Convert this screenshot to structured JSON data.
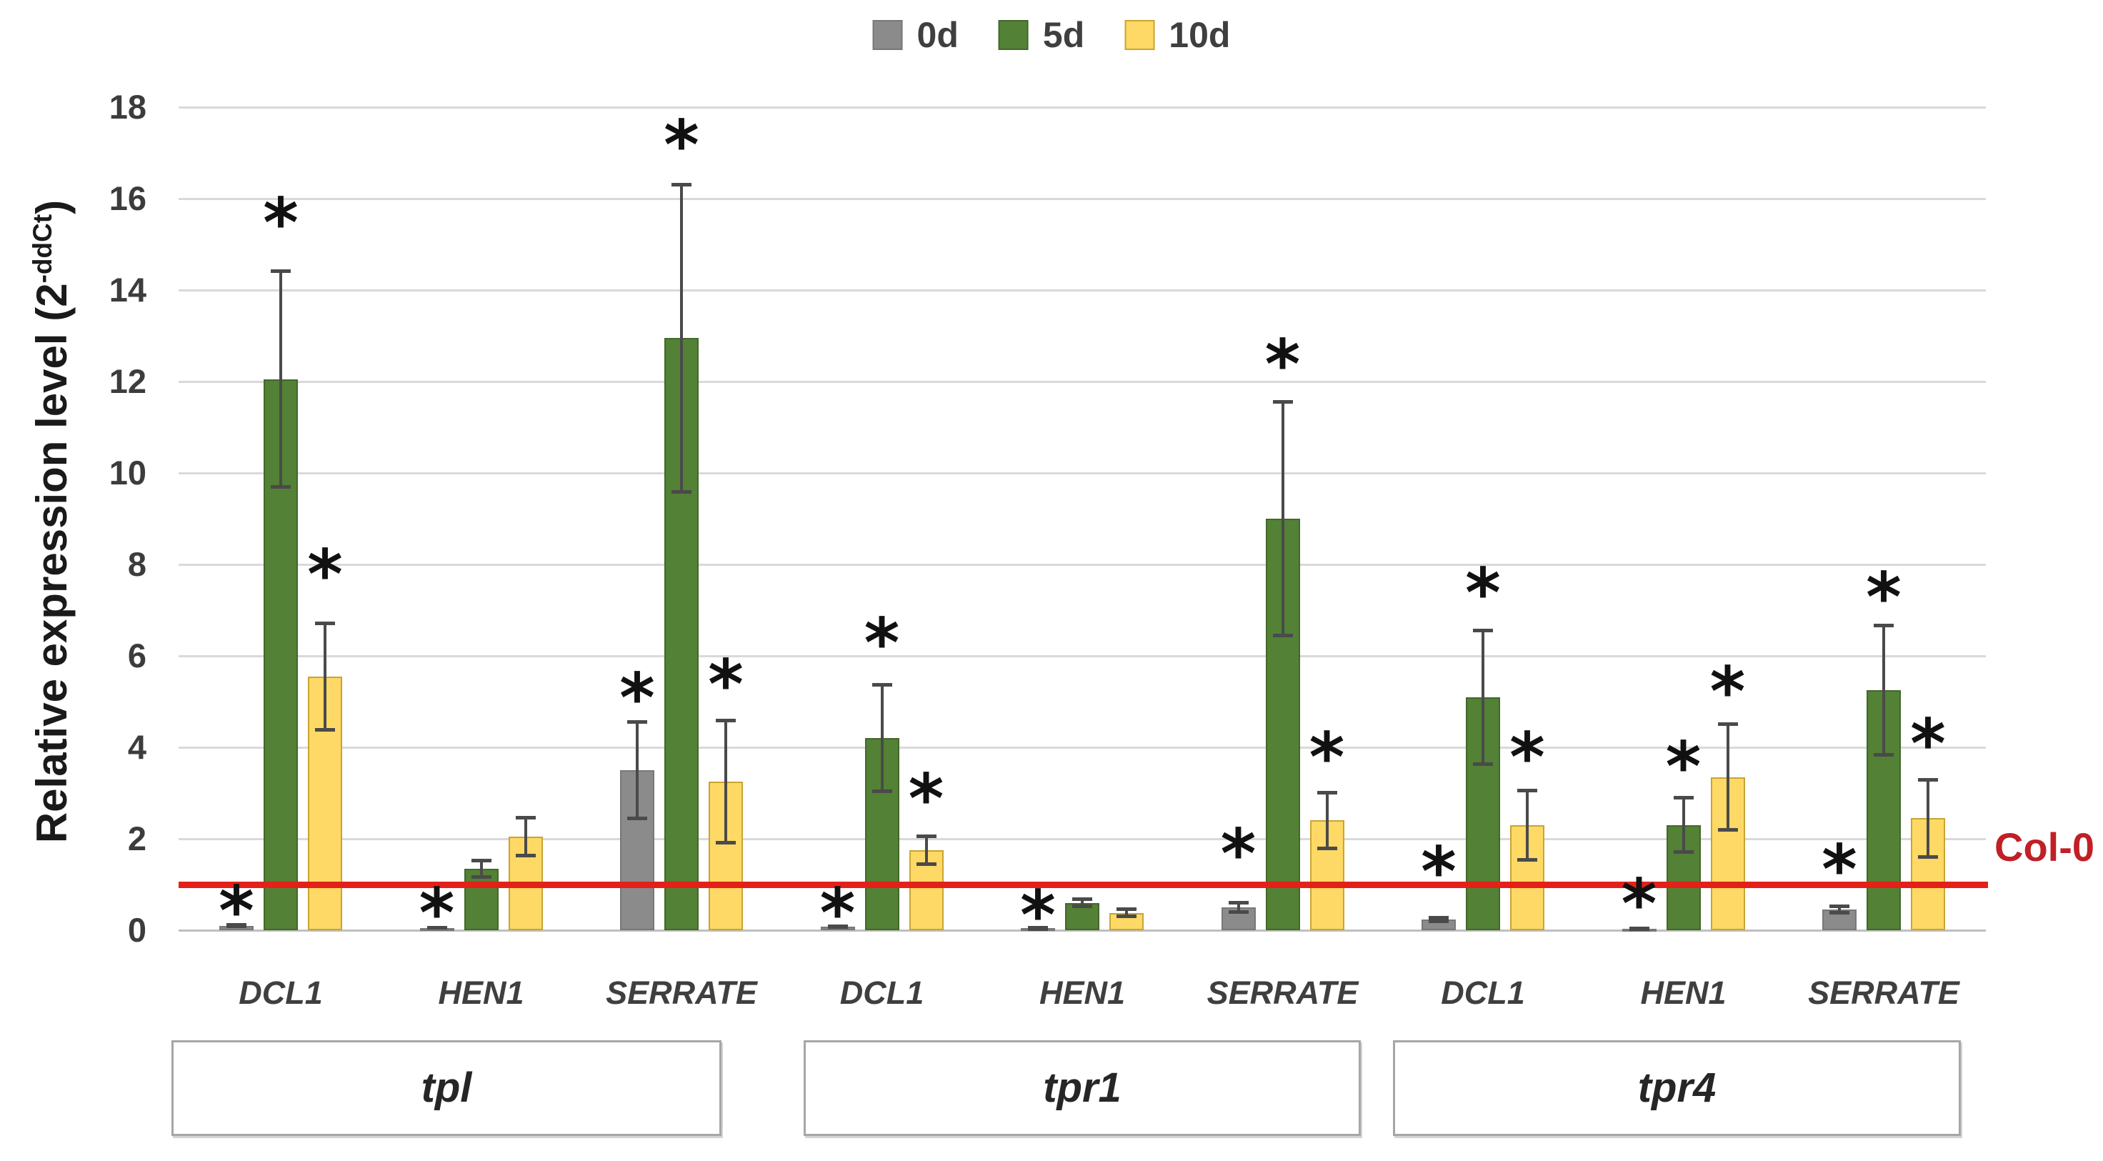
{
  "chart_data": {
    "type": "bar",
    "title": "",
    "ylabel_prefix": "Relative expression level (2",
    "ylabel_sup": "-ddCt",
    "ylabel_suffix": ")",
    "xlabel": "",
    "ylim": [
      0,
      18
    ],
    "yticks": [
      0,
      2,
      4,
      6,
      8,
      10,
      12,
      14,
      16,
      18
    ],
    "grid": true,
    "legend_position": "top-center",
    "significance_marker": "*",
    "series": [
      {
        "name": "0d",
        "color": "#8B8B8B",
        "border": "#787878"
      },
      {
        "name": "5d",
        "color": "#538135",
        "border": "#44682B"
      },
      {
        "name": "10d",
        "color": "#FED965",
        "border": "#C9A432"
      }
    ],
    "reference_line": {
      "label": "Col-0",
      "value": 1,
      "line_color": "#E32119",
      "label_color": "#C02026"
    },
    "groups": [
      {
        "label": "tpl",
        "genes": [
          {
            "gene": "DCL1",
            "values": [
              0.1,
              12.05,
              5.55
            ],
            "errors": [
              0.06,
              2.4,
              1.2
            ],
            "sig": [
              true,
              true,
              true
            ],
            "sig_y": [
              0.55,
              15.6,
              7.9
            ]
          },
          {
            "gene": "HEN1",
            "values": [
              0.05,
              1.35,
              2.05
            ],
            "errors": [
              0.04,
              0.22,
              0.45
            ],
            "sig": [
              true,
              false,
              false
            ],
            "sig_y": [
              0.5,
              null,
              null
            ]
          },
          {
            "gene": "SERRATE",
            "values": [
              3.5,
              12.95,
              3.25
            ],
            "errors": [
              1.1,
              3.4,
              1.38
            ],
            "sig": [
              true,
              true,
              true
            ],
            "sig_y": [
              5.2,
              17.3,
              5.5
            ]
          }
        ]
      },
      {
        "label": "tpr1",
        "genes": [
          {
            "gene": "DCL1",
            "values": [
              0.08,
              4.2,
              1.75
            ],
            "errors": [
              0.05,
              1.2,
              0.35
            ],
            "sig": [
              true,
              true,
              true
            ],
            "sig_y": [
              0.5,
              6.4,
              3.0
            ]
          },
          {
            "gene": "HEN1",
            "values": [
              0.04,
              0.6,
              0.38
            ],
            "errors": [
              0.03,
              0.12,
              0.12
            ],
            "sig": [
              true,
              false,
              false
            ],
            "sig_y": [
              0.45,
              null,
              null
            ]
          },
          {
            "gene": "SERRATE",
            "values": [
              0.5,
              9.0,
              2.4
            ],
            "errors": [
              0.14,
              2.6,
              0.65
            ],
            "sig": [
              true,
              true,
              true
            ],
            "sig_y": [
              1.8,
              12.5,
              3.9
            ]
          }
        ]
      },
      {
        "label": "tpr4",
        "genes": [
          {
            "gene": "DCL1",
            "values": [
              0.23,
              5.1,
              2.3
            ],
            "errors": [
              0.08,
              1.5,
              0.8
            ],
            "sig": [
              true,
              true,
              true
            ],
            "sig_y": [
              1.4,
              7.5,
              3.9
            ]
          },
          {
            "gene": "HEN1",
            "values": [
              0.03,
              2.3,
              3.35
            ],
            "errors": [
              0.03,
              0.63,
              1.2
            ],
            "sig": [
              true,
              true,
              true
            ],
            "sig_y": [
              0.7,
              3.7,
              5.35
            ]
          },
          {
            "gene": "SERRATE",
            "values": [
              0.45,
              5.25,
              2.45
            ],
            "errors": [
              0.11,
              1.45,
              0.88
            ],
            "sig": [
              true,
              true,
              true
            ],
            "sig_y": [
              1.45,
              7.4,
              4.2
            ]
          }
        ]
      }
    ]
  }
}
